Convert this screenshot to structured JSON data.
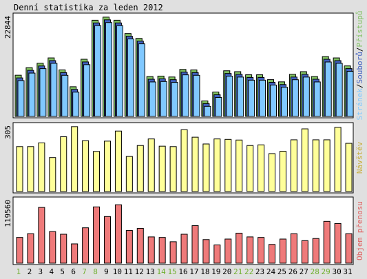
{
  "title": "Denní statistika za leden 2012",
  "colors": {
    "background": "#e0e0e0",
    "panel": "#ffffff",
    "hits": "#7fc060",
    "files": "#4060c0",
    "pages": "#80c8ff",
    "visits": "#ffff99",
    "kbytes": "#ef7a7a",
    "weekend_label": "#70b030",
    "weekday_label": "#000000",
    "ylabel_visits": "#c8b040",
    "ylabel_kbytes": "#e06060"
  },
  "chart_data": [
    {
      "type": "bar",
      "panel": "hits-files-pages",
      "title": "Denní statistika za leden 2012",
      "ylabel_max": "22844",
      "ylim": [
        0,
        22844
      ],
      "legend": [
        {
          "name": "Stránek",
          "color": "#80c8ff"
        },
        {
          "name": "Souborů",
          "color": "#4060c0"
        },
        {
          "name": "Přístupů",
          "color": "#7fc060"
        }
      ],
      "legend_separator": "/",
      "categories": [
        "1",
        "2",
        "3",
        "4",
        "5",
        "6",
        "7",
        "8",
        "9",
        "10",
        "11",
        "12",
        "13",
        "14",
        "15",
        "16",
        "17",
        "18",
        "19",
        "20",
        "21",
        "22",
        "23",
        "24",
        "25",
        "26",
        "27",
        "28",
        "29",
        "30",
        "31"
      ],
      "series": [
        {
          "name": "Přístupů",
          "values": [
            9300,
            11000,
            12000,
            13200,
            10500,
            6700,
            12900,
            21700,
            22400,
            21700,
            18700,
            17600,
            9000,
            9100,
            8900,
            10600,
            10500,
            3500,
            5500,
            10300,
            10100,
            9400,
            9400,
            8300,
            7800,
            9500,
            10100,
            9000,
            13500,
            13200,
            11400
          ]
        },
        {
          "name": "Souborů",
          "values": [
            9000,
            10700,
            11700,
            12900,
            10200,
            6400,
            12600,
            21400,
            22100,
            21400,
            18400,
            17300,
            8700,
            8800,
            8600,
            10300,
            10200,
            3200,
            5200,
            10000,
            9800,
            9100,
            9100,
            8000,
            7500,
            9200,
            9800,
            8700,
            13200,
            12900,
            11100
          ]
        },
        {
          "name": "Stránek",
          "values": [
            8700,
            10400,
            11400,
            12600,
            9900,
            6100,
            12300,
            21100,
            21800,
            21100,
            18100,
            17000,
            8400,
            8500,
            8300,
            10000,
            9900,
            2900,
            4900,
            9700,
            9500,
            8800,
            8800,
            7700,
            7200,
            8900,
            9500,
            8400,
            12900,
            12600,
            10800
          ]
        }
      ]
    },
    {
      "type": "bar",
      "panel": "visits",
      "ylabel_max": "305",
      "ylim": [
        0,
        305
      ],
      "legend": [
        {
          "name": "Návštěv",
          "color": "#ffff99"
        }
      ],
      "categories": [
        "1",
        "2",
        "3",
        "4",
        "5",
        "6",
        "7",
        "8",
        "9",
        "10",
        "11",
        "12",
        "13",
        "14",
        "15",
        "16",
        "17",
        "18",
        "19",
        "20",
        "21",
        "22",
        "23",
        "24",
        "25",
        "26",
        "27",
        "28",
        "29",
        "30",
        "31"
      ],
      "series": [
        {
          "name": "Návštěv",
          "values": [
            205,
            205,
            222,
            155,
            250,
            296,
            232,
            183,
            230,
            276,
            160,
            210,
            240,
            207,
            205,
            282,
            248,
            217,
            240,
            238,
            235,
            210,
            213,
            173,
            184,
            236,
            286,
            236,
            236,
            293,
            220
          ]
        }
      ]
    },
    {
      "type": "bar",
      "panel": "kbytes",
      "ylabel_max": "119560",
      "ylim": [
        0,
        119560
      ],
      "legend": [
        {
          "name": "Objem přenosu",
          "color": "#ef7a7a"
        }
      ],
      "categories": [
        "1",
        "2",
        "3",
        "4",
        "5",
        "6",
        "7",
        "8",
        "9",
        "10",
        "11",
        "12",
        "13",
        "14",
        "15",
        "16",
        "17",
        "18",
        "19",
        "20",
        "21",
        "22",
        "23",
        "24",
        "25",
        "26",
        "27",
        "28",
        "29",
        "30",
        "31"
      ],
      "series": [
        {
          "name": "Objem přenosu",
          "values": [
            48000,
            55000,
            104000,
            59000,
            54000,
            36000,
            66000,
            105000,
            87000,
            109000,
            61000,
            65000,
            49000,
            48000,
            40000,
            54000,
            70000,
            44000,
            34000,
            45000,
            56000,
            49000,
            48000,
            35000,
            45000,
            55000,
            42000,
            46000,
            78000,
            74000,
            55000
          ]
        }
      ]
    }
  ],
  "weekend_days": [
    1,
    7,
    8,
    14,
    15,
    21,
    22,
    28,
    29
  ]
}
